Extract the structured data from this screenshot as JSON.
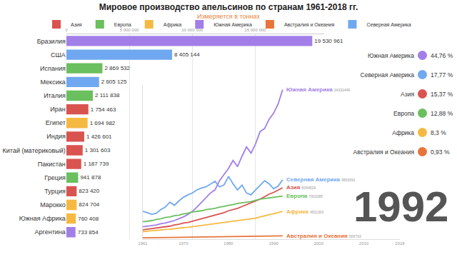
{
  "chart_data": [
    {
      "type": "bar",
      "title": "Мировое производство апельсинов по странам 1961-2018 гг.",
      "subtitle": "Измеряется в тоннах",
      "orientation": "horizontal",
      "categories": [
        "Бразилия",
        "США",
        "Испания",
        "Мексика",
        "Италия",
        "Иран",
        "Египет",
        "Индия",
        "Китай (материковый)",
        "Пакистан",
        "Греция",
        "Турция",
        "Марокко",
        "Южная Африка",
        "Аргентина"
      ],
      "series": [
        {
          "name": "Азия",
          "color": "#d9534f",
          "values": [
            null,
            null,
            null,
            null,
            null,
            1754463,
            null,
            1426601,
            1301603,
            1187739,
            null,
            823420,
            null,
            null,
            null
          ],
          "value_labels": [
            null,
            null,
            null,
            null,
            null,
            "1 754 463",
            null,
            "1 426 601",
            "1 301 603",
            "1 187 739",
            null,
            "823 420",
            null,
            null,
            null
          ]
        },
        {
          "name": "Европа",
          "color": "#6abf5e",
          "values": [
            null,
            null,
            2869532,
            null,
            2111838,
            null,
            null,
            null,
            null,
            null,
            941878,
            null,
            null,
            null,
            null
          ],
          "value_labels": [
            null,
            null,
            "2 869 532",
            null,
            "2 111 838",
            null,
            null,
            null,
            null,
            null,
            "941 878",
            null,
            null,
            null,
            null
          ]
        },
        {
          "name": "Африка",
          "color": "#f5b942",
          "values": [
            null,
            null,
            null,
            null,
            null,
            null,
            1694982,
            null,
            null,
            null,
            null,
            null,
            824704,
            760408,
            null
          ],
          "value_labels": [
            null,
            null,
            null,
            null,
            null,
            null,
            "1 694 982",
            null,
            null,
            null,
            null,
            null,
            "824 704",
            "760 408",
            null
          ]
        },
        {
          "name": "Южная Америка",
          "color": "#a27fe8",
          "values": [
            19530961,
            null,
            null,
            null,
            null,
            null,
            null,
            null,
            null,
            null,
            null,
            null,
            null,
            null,
            733854
          ],
          "value_labels": [
            "19 530 961",
            null,
            null,
            null,
            null,
            null,
            null,
            null,
            null,
            null,
            null,
            null,
            null,
            null,
            "733 854"
          ]
        },
        {
          "name": "Австралия и Океания",
          "color": "#e8743b",
          "values": [
            null,
            null,
            null,
            null,
            null,
            null,
            null,
            null,
            null,
            null,
            null,
            null,
            null,
            null,
            null
          ],
          "value_labels": [
            null,
            null,
            null,
            null,
            null,
            null,
            null,
            null,
            null,
            null,
            null,
            null,
            null,
            null,
            null
          ]
        },
        {
          "name": "Северная Америка",
          "color": "#6fa8f0",
          "values": [
            null,
            8405144,
            null,
            2605125,
            null,
            null,
            null,
            null,
            null,
            null,
            null,
            null,
            null,
            null,
            null
          ],
          "value_labels": [
            null,
            "8 405 144",
            null,
            "2 605 125",
            null,
            null,
            null,
            null,
            null,
            null,
            null,
            null,
            null,
            null,
            null
          ]
        }
      ],
      "xlim": [
        0,
        20500000
      ],
      "xticks": [
        0,
        {
          "value": 5000000,
          "label": "5 000 000"
        },
        {
          "value": 10000000,
          "label": "10 000 000"
        },
        {
          "value": 15000000,
          "label": "15 000 000"
        }
      ],
      "grid": true,
      "legend": "top",
      "data_labels": true
    },
    {
      "type": "line",
      "x": [
        1961,
        1962,
        1963,
        1964,
        1965,
        1966,
        1967,
        1968,
        1969,
        1970,
        1971,
        1972,
        1973,
        1974,
        1975,
        1976,
        1977,
        1978,
        1979,
        1980,
        1981,
        1982,
        1983,
        1984,
        1985,
        1986,
        1987,
        1988,
        1989,
        1990,
        1991,
        1992
      ],
      "series": [
        {
          "name": "Южная Америка",
          "color": "#a27fe8",
          "values": [
            2000000,
            2100000,
            2200000,
            2300000,
            2500000,
            2600000,
            2800000,
            3000000,
            3300000,
            3600000,
            4000000,
            4500000,
            5200000,
            6000000,
            6800000,
            7500000,
            8000000,
            9500000,
            10500000,
            11500000,
            12800000,
            11800000,
            13500000,
            15000000,
            14000000,
            15500000,
            17500000,
            18000000,
            19500000,
            20500000,
            22000000,
            24331449
          ],
          "value_labels": [
            null,
            null,
            null,
            null,
            null,
            null,
            null,
            null,
            null,
            null,
            null,
            null,
            null,
            null,
            null,
            null,
            null,
            null,
            null,
            null,
            null,
            null,
            null,
            null,
            null,
            null,
            null,
            null,
            null,
            null,
            null,
            "24331449"
          ]
        },
        {
          "name": "Северная Америка",
          "color": "#6fa8f0",
          "values": [
            4500000,
            4300000,
            4000000,
            4200000,
            4800000,
            5200000,
            6000000,
            5500000,
            6200000,
            6800000,
            7200000,
            7500000,
            8000000,
            8300000,
            8500000,
            9000000,
            9400000,
            8500000,
            8800000,
            10200000,
            9000000,
            8000000,
            8800000,
            7500000,
            7200000,
            8000000,
            8800000,
            9500000,
            9000000,
            8200000,
            8600000,
            9653091
          ],
          "value_labels": [
            null,
            null,
            null,
            null,
            null,
            null,
            null,
            null,
            null,
            null,
            null,
            null,
            null,
            null,
            null,
            null,
            null,
            null,
            null,
            null,
            null,
            null,
            null,
            null,
            null,
            null,
            null,
            null,
            null,
            null,
            null,
            "9653091"
          ]
        },
        {
          "name": "Азия",
          "color": "#d9534f",
          "values": [
            1500000,
            1600000,
            1700000,
            1800000,
            1900000,
            2000000,
            2100000,
            2300000,
            2400000,
            2600000,
            2700000,
            2900000,
            3100000,
            3300000,
            3500000,
            3700000,
            3900000,
            4100000,
            4300000,
            4600000,
            4800000,
            5000000,
            5300000,
            5600000,
            5900000,
            6200000,
            6500000,
            6900000,
            7300000,
            7600000,
            8000000,
            8354529
          ],
          "value_labels": [
            null,
            null,
            null,
            null,
            null,
            null,
            null,
            null,
            null,
            null,
            null,
            null,
            null,
            null,
            null,
            null,
            null,
            null,
            null,
            null,
            null,
            null,
            null,
            null,
            null,
            null,
            null,
            null,
            null,
            null,
            null,
            "8354529"
          ]
        },
        {
          "name": "Европа",
          "color": "#6abf5e",
          "values": [
            2800000,
            2900000,
            3000000,
            3200000,
            3300000,
            3500000,
            3600000,
            3800000,
            3900000,
            4100000,
            4200000,
            4400000,
            4500000,
            4600000,
            4800000,
            4900000,
            5000000,
            5200000,
            5300000,
            5500000,
            5600000,
            5800000,
            5900000,
            6000000,
            6100000,
            6300000,
            6500000,
            6600000,
            6700000,
            6800000,
            6900000,
            7002085
          ],
          "value_labels": [
            null,
            null,
            null,
            null,
            null,
            null,
            null,
            null,
            null,
            null,
            null,
            null,
            null,
            null,
            null,
            null,
            null,
            null,
            null,
            null,
            null,
            null,
            null,
            null,
            null,
            null,
            null,
            null,
            null,
            null,
            null,
            "7002085"
          ]
        },
        {
          "name": "Африка",
          "color": "#f5b942",
          "values": [
            1200000,
            1300000,
            1350000,
            1400000,
            1500000,
            1550000,
            1600000,
            1700000,
            1800000,
            1850000,
            1900000,
            2000000,
            2100000,
            2200000,
            2300000,
            2400000,
            2500000,
            2600000,
            2700000,
            2800000,
            2900000,
            3000000,
            3100000,
            3200000,
            3300000,
            3400000,
            3600000,
            3800000,
            4000000,
            4200000,
            4350000,
            4511303
          ],
          "value_labels": [
            null,
            null,
            null,
            null,
            null,
            null,
            null,
            null,
            null,
            null,
            null,
            null,
            null,
            null,
            null,
            null,
            null,
            null,
            null,
            null,
            null,
            null,
            null,
            null,
            null,
            null,
            null,
            null,
            null,
            null,
            null,
            "4511303"
          ]
        },
        {
          "name": "Австралия и Океания",
          "color": "#e8743b",
          "values": [
            200000,
            210000,
            220000,
            230000,
            240000,
            250000,
            260000,
            270000,
            280000,
            290000,
            300000,
            310000,
            320000,
            330000,
            340000,
            350000,
            360000,
            370000,
            380000,
            390000,
            400000,
            410000,
            420000,
            430000,
            440000,
            450000,
            460000,
            470000,
            480000,
            490000,
            500000,
            506763
          ],
          "value_labels": [
            null,
            null,
            null,
            null,
            null,
            null,
            null,
            null,
            null,
            null,
            null,
            null,
            null,
            null,
            null,
            null,
            null,
            null,
            null,
            null,
            null,
            null,
            null,
            null,
            null,
            null,
            null,
            null,
            null,
            null,
            null,
            "506763"
          ]
        }
      ],
      "xlim": [
        1961,
        2018
      ],
      "xticks": [
        1961,
        1970,
        1980,
        1990,
        2000,
        2010,
        2018
      ],
      "ylim": [
        0,
        25000000
      ],
      "yticks": [],
      "tick_labels": "x",
      "data_labels": true,
      "annotation": "1992"
    },
    {
      "type": "share_list",
      "categories": [
        "Южная Америка",
        "Северная Америка",
        "Азия",
        "Европа",
        "Африка",
        "Австралия и Океания"
      ],
      "values": [
        44.76,
        17.77,
        15.37,
        12.88,
        8.3,
        0.93
      ],
      "value_labels": [
        "44,76 %",
        "17,77 %",
        "15,37 %",
        "12,88 %",
        "8,3 %",
        "0,93 %"
      ],
      "colors": [
        "#a27fe8",
        "#6fa8f0",
        "#d9534f",
        "#6abf5e",
        "#f5b942",
        "#e8743b"
      ]
    }
  ]
}
